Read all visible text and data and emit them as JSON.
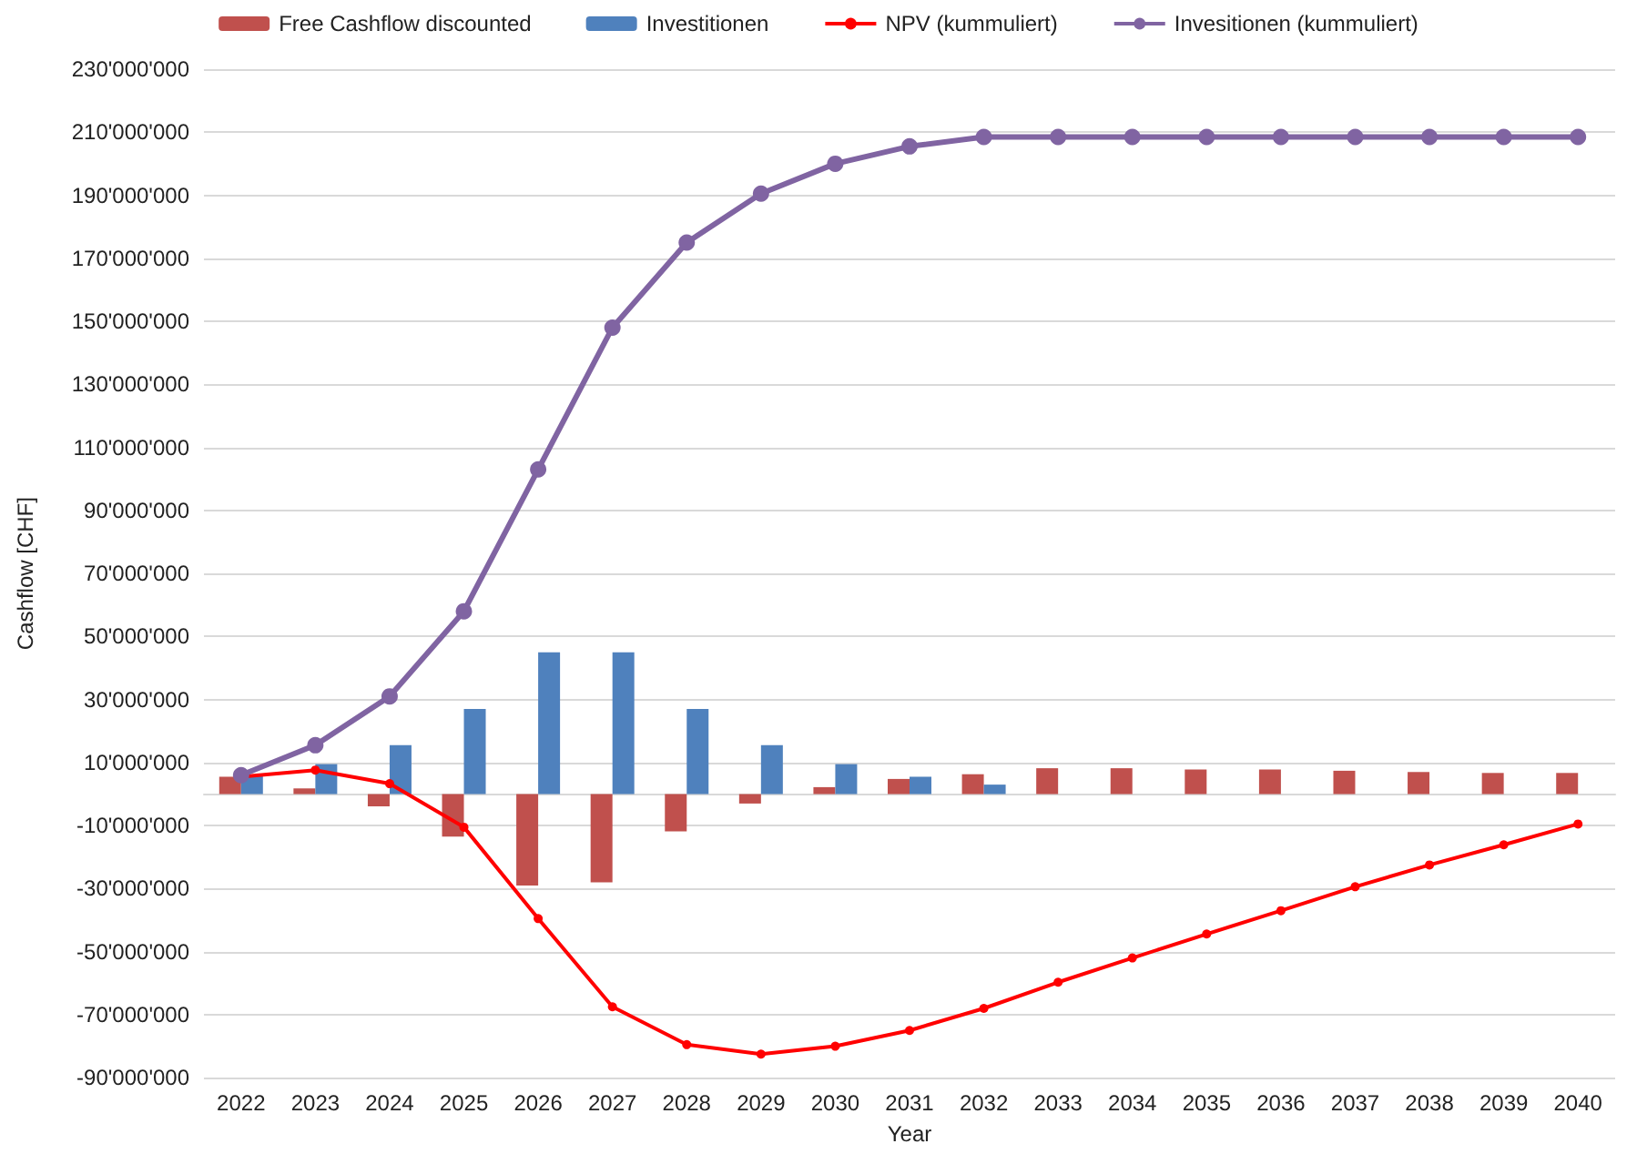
{
  "chart_data": {
    "type": "bar",
    "xlabel": "Year",
    "ylabel": "Cashflow [CHF]",
    "categories": [
      "2022",
      "2023",
      "2024",
      "2025",
      "2026",
      "2027",
      "2028",
      "2029",
      "2030",
      "2031",
      "2032",
      "2033",
      "2034",
      "2035",
      "2036",
      "2037",
      "2038",
      "2039",
      "2040"
    ],
    "series": [
      {
        "name": "Free Cashflow discounted",
        "color": "#c0504d",
        "values": [
          5500000,
          1800000,
          -3900000,
          -13500000,
          -29000000,
          -28000000,
          -11800000,
          -3000000,
          2200000,
          4800000,
          6300000,
          8200000,
          8200000,
          7800000,
          7800000,
          7400000,
          7000000,
          6700000,
          6700000
        ]
      },
      {
        "name": "Investitionen",
        "color": "#4f81bd",
        "values": [
          6000000,
          9500000,
          15500000,
          27000000,
          45000000,
          45000000,
          27000000,
          15500000,
          9500000,
          5500000,
          3000000,
          null,
          null,
          null,
          null,
          null,
          null,
          null,
          null
        ]
      },
      {
        "name": "NPV (kummuliert)",
        "type": "line",
        "color": "#ff0000",
        "marker": "circle",
        "values": [
          5500000,
          7600000,
          3300000,
          -10500000,
          -39500000,
          -67500000,
          -79500000,
          -82500000,
          -80000000,
          -75000000,
          -68000000,
          -59700000,
          -52000000,
          -44400000,
          -37000000,
          -29400000,
          -22500000,
          -16100000,
          -9500000
        ]
      },
      {
        "name": "Invesitionen (kummuliert)",
        "type": "line",
        "color": "#8064a2",
        "marker": "circle",
        "values": [
          6000000,
          15500000,
          31000000,
          58000000,
          103000000,
          148000000,
          175000000,
          190500000,
          200000000,
          205500000,
          208500000,
          208500000,
          208500000,
          208500000,
          208500000,
          208500000,
          208500000,
          208500000,
          208500000
        ]
      }
    ],
    "ylim": [
      -90000000,
      230000000
    ],
    "yticks": [
      {
        "value": -90000000,
        "label": "-90'000'000"
      },
      {
        "value": -70000000,
        "label": "-70'000'000"
      },
      {
        "value": -50000000,
        "label": "-50'000'000"
      },
      {
        "value": -30000000,
        "label": "-30'000'000"
      },
      {
        "value": -10000000,
        "label": "-10'000'000"
      },
      {
        "value": 10000000,
        "label": "10'000'000"
      },
      {
        "value": 30000000,
        "label": "30'000'000"
      },
      {
        "value": 50000000,
        "label": "50'000'000"
      },
      {
        "value": 70000000,
        "label": "70'000'000"
      },
      {
        "value": 90000000,
        "label": "90'000'000"
      },
      {
        "value": 110000000,
        "label": "110'000'000"
      },
      {
        "value": 130000000,
        "label": "130'000'000"
      },
      {
        "value": 150000000,
        "label": "150'000'000"
      },
      {
        "value": 170000000,
        "label": "170'000'000"
      },
      {
        "value": 190000000,
        "label": "190'000'000"
      },
      {
        "value": 210000000,
        "label": "210'000'000"
      },
      {
        "value": 230000000,
        "label": "230'000'000"
      }
    ],
    "grid": "y",
    "legend": "top"
  }
}
